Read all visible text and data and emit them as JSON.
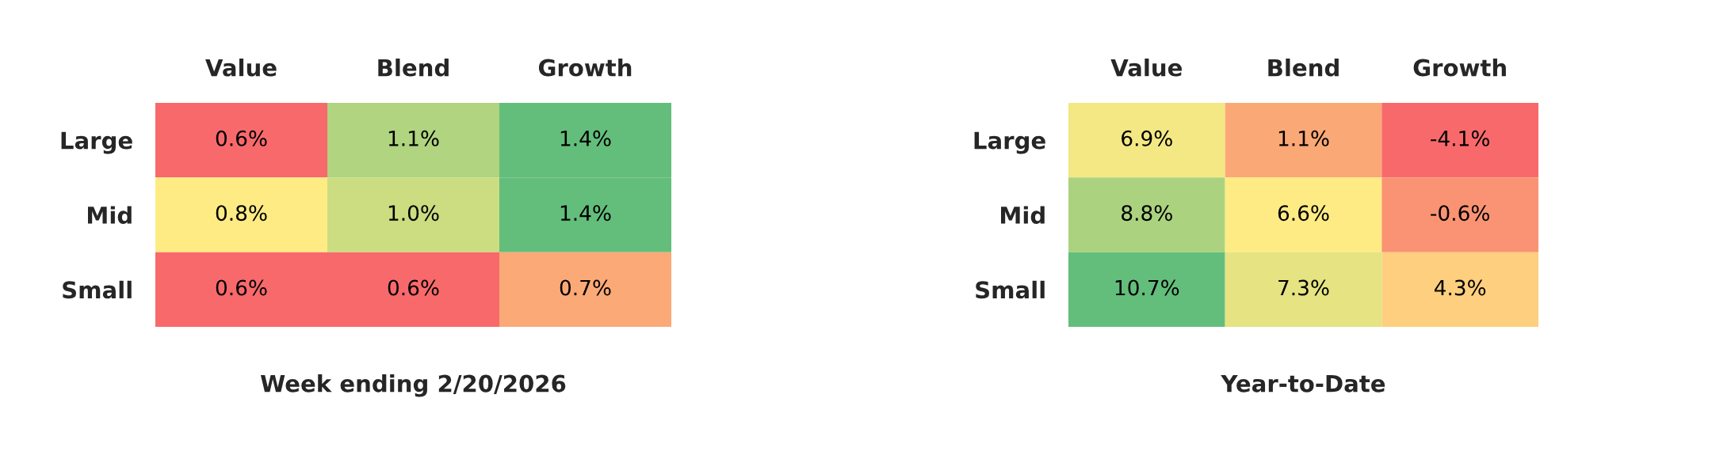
{
  "chart_data": [
    {
      "type": "heatmap",
      "title": "Week ending 2/20/2026",
      "categories": [
        "Value",
        "Blend",
        "Growth"
      ],
      "y_categories": [
        "Large",
        "Mid",
        "Small"
      ],
      "cells": [
        [
          0.6,
          1.1,
          1.4
        ],
        [
          0.8,
          1.0,
          1.4
        ],
        [
          0.6,
          0.6,
          0.7
        ]
      ],
      "cell_labels": [
        [
          "0.6%",
          "1.1%",
          "1.4%"
        ],
        [
          "0.8%",
          "1.0%",
          "1.4%"
        ],
        [
          "0.6%",
          "0.6%",
          "0.7%"
        ]
      ]
    },
    {
      "type": "heatmap",
      "title": "Year-to-Date",
      "categories": [
        "Value",
        "Blend",
        "Growth"
      ],
      "y_categories": [
        "Large",
        "Mid",
        "Small"
      ],
      "cells": [
        [
          6.9,
          1.1,
          -4.1
        ],
        [
          8.8,
          6.6,
          -0.6
        ],
        [
          10.7,
          7.3,
          4.3
        ]
      ],
      "cell_labels": [
        [
          "6.9%",
          "1.1%",
          "-4.1%"
        ],
        [
          "8.8%",
          "6.6%",
          "-0.6%"
        ],
        [
          "10.7%",
          "7.3%",
          "4.3%"
        ]
      ]
    }
  ]
}
